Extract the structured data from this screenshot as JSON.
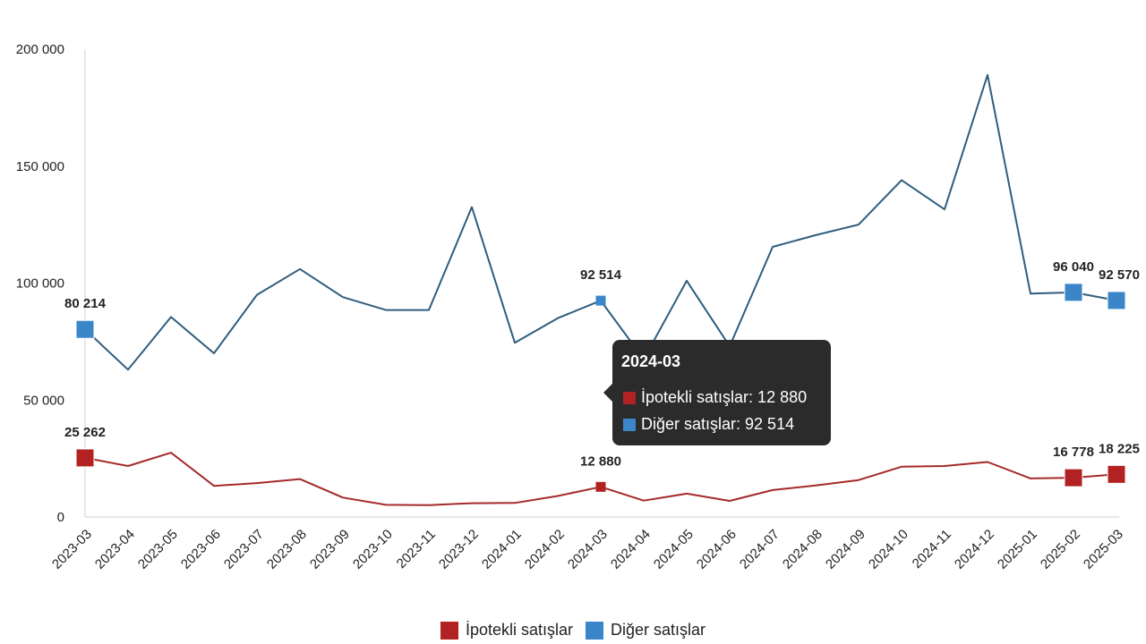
{
  "chart_data": {
    "type": "line",
    "title": "",
    "xlabel": "",
    "ylabel": "",
    "ylim": [
      0,
      200000
    ],
    "y_ticks": [
      "0",
      "50 000",
      "100 000",
      "150 000",
      "200 000"
    ],
    "y_tick_values": [
      0,
      50000,
      100000,
      150000,
      200000
    ],
    "grid": false,
    "legend_position": "bottom",
    "x": [
      "2023-03",
      "2023-04",
      "2023-05",
      "2023-06",
      "2023-07",
      "2023-08",
      "2023-09",
      "2023-10",
      "2023-11",
      "2023-12",
      "2024-01",
      "2024-02",
      "2024-03",
      "2024-04",
      "2024-05",
      "2024-06",
      "2024-07",
      "2024-08",
      "2024-09",
      "2024-10",
      "2024-11",
      "2024-12",
      "2025-01",
      "2025-02",
      "2025-03"
    ],
    "series": [
      {
        "name": "İpotekli satışlar",
        "color": "#b22222",
        "line_color": "#a52a2a",
        "values": [
          25262,
          21800,
          27500,
          13300,
          14500,
          16200,
          8300,
          5200,
          5100,
          5900,
          6000,
          9000,
          12880,
          7000,
          10000,
          6900,
          11500,
          13500,
          15800,
          21500,
          21800,
          23500,
          16500,
          16778,
          18225
        ]
      },
      {
        "name": "Diğer satışlar",
        "color": "#3a86c8",
        "line_color": "#2f5d7e",
        "values": [
          80214,
          63000,
          85500,
          70000,
          95000,
          106000,
          94000,
          88500,
          88500,
          132500,
          74500,
          85000,
          92514,
          67500,
          101000,
          73000,
          115500,
          120500,
          125000,
          144000,
          131500,
          189000,
          95500,
          96040,
          92570
        ]
      }
    ],
    "data_labels": [
      {
        "series": 1,
        "index": 0,
        "text": "80 214"
      },
      {
        "series": 1,
        "index": 12,
        "text": "92 514"
      },
      {
        "series": 1,
        "index": 23,
        "text": "96 040"
      },
      {
        "series": 1,
        "index": 24,
        "text": "92 570"
      },
      {
        "series": 0,
        "index": 0,
        "text": "25 262"
      },
      {
        "series": 0,
        "index": 12,
        "text": "12 880"
      },
      {
        "series": 0,
        "index": 23,
        "text": "16 778"
      },
      {
        "series": 0,
        "index": 24,
        "text": "18 225"
      }
    ],
    "markers": [
      {
        "series": 1,
        "index": 0,
        "size": "large"
      },
      {
        "series": 1,
        "index": 12,
        "size": "small"
      },
      {
        "series": 1,
        "index": 23,
        "size": "large"
      },
      {
        "series": 1,
        "index": 24,
        "size": "large"
      },
      {
        "series": 0,
        "index": 0,
        "size": "large"
      },
      {
        "series": 0,
        "index": 12,
        "size": "small"
      },
      {
        "series": 0,
        "index": 23,
        "size": "large"
      },
      {
        "series": 0,
        "index": 24,
        "size": "large"
      }
    ]
  },
  "tooltip": {
    "title": "2024-03",
    "rows": [
      {
        "label": "İpotekli satışlar: 12 880",
        "color": "#b22222"
      },
      {
        "label": "Diğer satışlar: 92 514",
        "color": "#3a86c8"
      }
    ]
  },
  "legend": {
    "items": [
      {
        "label": "İpotekli satışlar",
        "color": "#b22222"
      },
      {
        "label": "Diğer satışlar",
        "color": "#3a86c8"
      }
    ]
  }
}
